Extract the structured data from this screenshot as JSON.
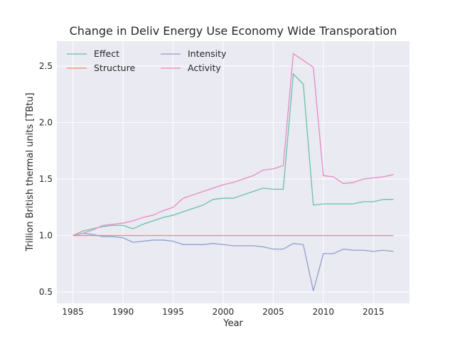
{
  "chart_data": {
    "type": "line",
    "title": "Change in Deliv Energy Use Economy Wide Transporation",
    "xlabel": "Year",
    "ylabel": "Trillion British thermal units [TBtu]",
    "xlim": [
      1983.4,
      2018.6
    ],
    "ylim": [
      0.4,
      2.72
    ],
    "xticks": [
      1985,
      1990,
      1995,
      2000,
      2005,
      2010,
      2015
    ],
    "yticks": [
      0.5,
      1.0,
      1.5,
      2.0,
      2.5
    ],
    "xtick_labels": [
      "1985",
      "1990",
      "1995",
      "2000",
      "2005",
      "2010",
      "2015"
    ],
    "ytick_labels": [
      "0.5",
      "1.0",
      "1.5",
      "2.0",
      "2.5"
    ],
    "grid": true,
    "legend_placement": "top-left",
    "x": [
      1985,
      1986,
      1987,
      1988,
      1989,
      1990,
      1991,
      1992,
      1993,
      1994,
      1995,
      1996,
      1997,
      1998,
      1999,
      2000,
      2001,
      2002,
      2003,
      2004,
      2005,
      2006,
      2007,
      2008,
      2009,
      2010,
      2011,
      2012,
      2013,
      2014,
      2015,
      2016,
      2017
    ],
    "series": [
      {
        "name": "Effect",
        "color": "#66c2a5",
        "values": [
          1.0,
          1.04,
          1.06,
          1.08,
          1.09,
          1.09,
          1.06,
          1.1,
          1.13,
          1.16,
          1.18,
          1.21,
          1.24,
          1.27,
          1.32,
          1.33,
          1.33,
          1.36,
          1.39,
          1.42,
          1.41,
          1.41,
          2.43,
          2.34,
          1.27,
          1.28,
          1.28,
          1.28,
          1.28,
          1.3,
          1.3,
          1.32,
          1.32
        ]
      },
      {
        "name": "Structure",
        "color": "#fc8d62",
        "values": [
          1.0,
          1.0,
          1.0,
          1.0,
          1.0,
          1.0,
          1.0,
          1.0,
          1.0,
          1.0,
          1.0,
          1.0,
          1.0,
          1.0,
          1.0,
          1.0,
          1.0,
          1.0,
          1.0,
          1.0,
          1.0,
          1.0,
          1.0,
          1.0,
          1.0,
          1.0,
          1.0,
          1.0,
          1.0,
          1.0,
          1.0,
          1.0,
          1.0
        ]
      },
      {
        "name": "Intensity",
        "color": "#8da0cb",
        "values": [
          1.0,
          1.02,
          1.01,
          0.99,
          0.99,
          0.98,
          0.94,
          0.95,
          0.96,
          0.96,
          0.95,
          0.92,
          0.92,
          0.92,
          0.93,
          0.92,
          0.91,
          0.91,
          0.91,
          0.9,
          0.88,
          0.88,
          0.93,
          0.92,
          0.51,
          0.84,
          0.84,
          0.88,
          0.87,
          0.87,
          0.86,
          0.87,
          0.86
        ]
      },
      {
        "name": "Activity",
        "color": "#e78ac3",
        "values": [
          1.0,
          1.02,
          1.05,
          1.09,
          1.1,
          1.11,
          1.13,
          1.16,
          1.18,
          1.22,
          1.25,
          1.33,
          1.36,
          1.39,
          1.42,
          1.45,
          1.47,
          1.5,
          1.53,
          1.58,
          1.59,
          1.62,
          2.61,
          2.55,
          2.49,
          1.53,
          1.52,
          1.46,
          1.47,
          1.5,
          1.51,
          1.52,
          1.54
        ]
      }
    ]
  }
}
